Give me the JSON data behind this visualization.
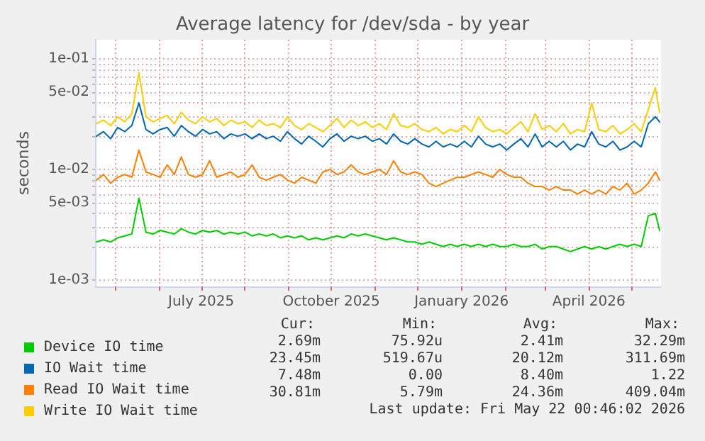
{
  "chart_data": {
    "type": "line",
    "title": "Average latency for /dev/sda - by year",
    "ylabel": "seconds",
    "log": "y",
    "grid": true,
    "legend": "bottom left",
    "marker": "none",
    "line_style": "solid",
    "xlim": [
      "2025-04-17",
      "2026-05-22"
    ],
    "xticks": [
      {
        "value": "2025-05-01",
        "label": null
      },
      {
        "value": "2025-06-01",
        "label": null
      },
      {
        "value": "2025-07-01",
        "label": "July 2025"
      },
      {
        "value": "2025-08-01",
        "label": null
      },
      {
        "value": "2025-09-01",
        "label": null
      },
      {
        "value": "2025-10-01",
        "label": "October 2025"
      },
      {
        "value": "2025-11-01",
        "label": null
      },
      {
        "value": "2025-12-01",
        "label": null
      },
      {
        "value": "2026-01-01",
        "label": "January 2026"
      },
      {
        "value": "2026-02-01",
        "label": null
      },
      {
        "value": "2026-03-01",
        "label": null
      },
      {
        "value": "2026-04-01",
        "label": "April 2026"
      },
      {
        "value": "2026-05-01",
        "label": null
      }
    ],
    "ylim": [
      0.00087,
      0.15
    ],
    "yticks": [
      {
        "value": 0.001,
        "label": "1e-03"
      },
      {
        "value": 0.002,
        "label": null
      },
      {
        "value": 0.003,
        "label": null
      },
      {
        "value": 0.004,
        "label": null
      },
      {
        "value": 0.005,
        "label": "5e-03"
      },
      {
        "value": 0.006,
        "label": null
      },
      {
        "value": 0.007,
        "label": null
      },
      {
        "value": 0.008,
        "label": null
      },
      {
        "value": 0.009,
        "label": null
      },
      {
        "value": 0.01,
        "label": "1e-02"
      },
      {
        "value": 0.02,
        "label": null
      },
      {
        "value": 0.03,
        "label": null
      },
      {
        "value": 0.04,
        "label": null
      },
      {
        "value": 0.05,
        "label": "5e-02"
      },
      {
        "value": 0.06,
        "label": null
      },
      {
        "value": 0.07,
        "label": null
      },
      {
        "value": 0.08,
        "label": null
      },
      {
        "value": 0.09,
        "label": null
      },
      {
        "value": 0.1,
        "label": "1e-01"
      }
    ],
    "x": [
      "2025-04-18",
      "2025-04-23",
      "2025-04-28",
      "2025-05-03",
      "2025-05-08",
      "2025-05-13",
      "2025-05-18",
      "2025-05-23",
      "2025-05-28",
      "2025-06-02",
      "2025-06-07",
      "2025-06-12",
      "2025-06-17",
      "2025-06-22",
      "2025-06-27",
      "2025-07-02",
      "2025-07-07",
      "2025-07-12",
      "2025-07-17",
      "2025-07-22",
      "2025-07-27",
      "2025-08-01",
      "2025-08-06",
      "2025-08-11",
      "2025-08-16",
      "2025-08-21",
      "2025-08-26",
      "2025-08-31",
      "2025-09-05",
      "2025-09-10",
      "2025-09-15",
      "2025-09-20",
      "2025-09-25",
      "2025-09-30",
      "2025-10-05",
      "2025-10-10",
      "2025-10-15",
      "2025-10-20",
      "2025-10-25",
      "2025-10-30",
      "2025-11-04",
      "2025-11-09",
      "2025-11-14",
      "2025-11-19",
      "2025-11-24",
      "2025-11-29",
      "2025-12-04",
      "2025-12-09",
      "2025-12-14",
      "2025-12-19",
      "2025-12-24",
      "2025-12-29",
      "2026-01-03",
      "2026-01-08",
      "2026-01-13",
      "2026-01-18",
      "2026-01-23",
      "2026-01-28",
      "2026-02-02",
      "2026-02-07",
      "2026-02-12",
      "2026-02-17",
      "2026-02-22",
      "2026-02-27",
      "2026-03-04",
      "2026-03-09",
      "2026-03-14",
      "2026-03-19",
      "2026-03-24",
      "2026-03-29",
      "2026-04-03",
      "2026-04-08",
      "2026-04-13",
      "2026-04-18",
      "2026-04-23",
      "2026-04-28",
      "2026-05-03",
      "2026-05-08",
      "2026-05-13",
      "2026-05-18",
      "2026-05-21"
    ],
    "series": [
      {
        "name": "Device IO time",
        "color": "#00cc00",
        "values": [
          0.0022,
          0.0023,
          0.0022,
          0.0024,
          0.0025,
          0.0026,
          0.0055,
          0.0027,
          0.0026,
          0.0028,
          0.0027,
          0.0026,
          0.0029,
          0.0027,
          0.0026,
          0.0028,
          0.0027,
          0.0028,
          0.0026,
          0.0027,
          0.0026,
          0.0027,
          0.0025,
          0.0026,
          0.0025,
          0.0026,
          0.0024,
          0.0025,
          0.0024,
          0.0025,
          0.0023,
          0.0024,
          0.0023,
          0.0024,
          0.0025,
          0.0024,
          0.0026,
          0.0025,
          0.0026,
          0.0025,
          0.0024,
          0.0023,
          0.0024,
          0.0023,
          0.0022,
          0.0022,
          0.0021,
          0.0022,
          0.0021,
          0.002,
          0.0021,
          0.002,
          0.0021,
          0.002,
          0.0021,
          0.002,
          0.0021,
          0.002,
          0.002,
          0.0021,
          0.002,
          0.002,
          0.0021,
          0.0019,
          0.002,
          0.002,
          0.0019,
          0.0018,
          0.0019,
          0.002,
          0.0019,
          0.002,
          0.0019,
          0.002,
          0.0021,
          0.002,
          0.0021,
          0.002,
          0.0038,
          0.004,
          0.0028
        ]
      },
      {
        "name": "IO Wait time",
        "color": "#0066b3",
        "values": [
          0.02,
          0.022,
          0.019,
          0.024,
          0.022,
          0.025,
          0.04,
          0.023,
          0.021,
          0.023,
          0.024,
          0.02,
          0.025,
          0.022,
          0.02,
          0.023,
          0.021,
          0.022,
          0.019,
          0.021,
          0.02,
          0.021,
          0.019,
          0.021,
          0.019,
          0.02,
          0.018,
          0.022,
          0.019,
          0.017,
          0.02,
          0.018,
          0.016,
          0.019,
          0.021,
          0.018,
          0.02,
          0.019,
          0.02,
          0.018,
          0.019,
          0.017,
          0.021,
          0.018,
          0.017,
          0.019,
          0.017,
          0.016,
          0.018,
          0.016,
          0.017,
          0.016,
          0.018,
          0.016,
          0.02,
          0.017,
          0.016,
          0.017,
          0.015,
          0.017,
          0.019,
          0.016,
          0.021,
          0.016,
          0.018,
          0.016,
          0.018,
          0.015,
          0.017,
          0.016,
          0.022,
          0.017,
          0.016,
          0.018,
          0.015,
          0.016,
          0.018,
          0.016,
          0.026,
          0.03,
          0.027
        ]
      },
      {
        "name": "Read IO Wait time",
        "color": "#ff8000",
        "values": [
          0.008,
          0.009,
          0.0075,
          0.0085,
          0.009,
          0.0085,
          0.015,
          0.0095,
          0.009,
          0.0085,
          0.011,
          0.009,
          0.013,
          0.009,
          0.0085,
          0.009,
          0.012,
          0.0085,
          0.009,
          0.0095,
          0.0085,
          0.009,
          0.011,
          0.0085,
          0.008,
          0.0085,
          0.009,
          0.008,
          0.0075,
          0.0085,
          0.008,
          0.0075,
          0.0095,
          0.01,
          0.009,
          0.0095,
          0.011,
          0.0095,
          0.009,
          0.0095,
          0.01,
          0.009,
          0.012,
          0.0095,
          0.009,
          0.0095,
          0.009,
          0.0075,
          0.007,
          0.0075,
          0.008,
          0.0085,
          0.0085,
          0.009,
          0.0095,
          0.009,
          0.0085,
          0.01,
          0.009,
          0.0085,
          0.0085,
          0.0075,
          0.007,
          0.007,
          0.0065,
          0.007,
          0.0065,
          0.0065,
          0.006,
          0.0065,
          0.006,
          0.0065,
          0.006,
          0.007,
          0.0065,
          0.0075,
          0.006,
          0.0065,
          0.0075,
          0.0095,
          0.008
        ]
      },
      {
        "name": "Write IO Wait time",
        "color": "#ffcc00",
        "values": [
          0.026,
          0.028,
          0.025,
          0.03,
          0.027,
          0.032,
          0.075,
          0.03,
          0.027,
          0.029,
          0.031,
          0.026,
          0.033,
          0.028,
          0.026,
          0.03,
          0.027,
          0.029,
          0.025,
          0.028,
          0.026,
          0.027,
          0.024,
          0.028,
          0.025,
          0.026,
          0.024,
          0.03,
          0.025,
          0.023,
          0.026,
          0.024,
          0.022,
          0.025,
          0.029,
          0.024,
          0.028,
          0.025,
          0.027,
          0.024,
          0.026,
          0.023,
          0.032,
          0.025,
          0.024,
          0.026,
          0.023,
          0.022,
          0.024,
          0.021,
          0.023,
          0.022,
          0.025,
          0.022,
          0.03,
          0.024,
          0.022,
          0.023,
          0.021,
          0.024,
          0.027,
          0.022,
          0.032,
          0.023,
          0.025,
          0.022,
          0.026,
          0.021,
          0.023,
          0.022,
          0.04,
          0.023,
          0.022,
          0.025,
          0.021,
          0.023,
          0.026,
          0.022,
          0.035,
          0.055,
          0.033
        ]
      }
    ],
    "annotations": [
      "Cur:",
      "Min:",
      "Avg:",
      "Max:",
      "2.69m",
      "75.92u",
      "2.41m",
      "32.29m",
      "23.45m",
      "519.67u",
      "20.12m",
      "311.69m",
      "7.48m",
      "0.00",
      "8.40m",
      "1.22",
      "30.81m",
      "5.79m",
      "24.36m",
      "409.04m",
      "Last update: Fri May 22 00:46:02 2026"
    ]
  }
}
